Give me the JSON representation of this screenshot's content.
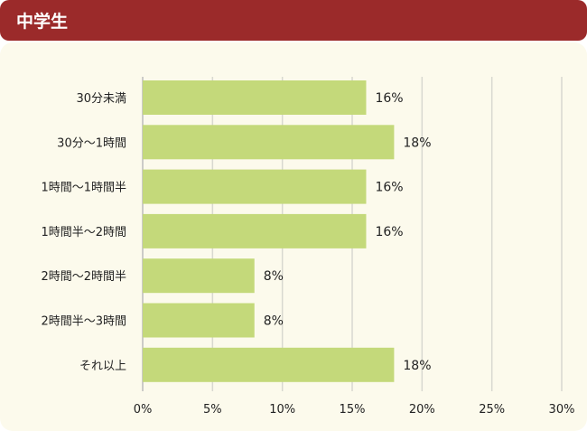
{
  "header": {
    "title": "中学生"
  },
  "colors": {
    "header": "#9b2a2a",
    "bar": "#c4d97a",
    "panel": "#fcfaec"
  },
  "chart_data": {
    "type": "bar",
    "orientation": "horizontal",
    "categories": [
      "30分未満",
      "30分～1時間",
      "1時間～1時間半",
      "1時間半～2時間",
      "2時間～2時間半",
      "2時間半～3時間",
      "それ以上"
    ],
    "values": [
      16,
      18,
      16,
      16,
      8,
      8,
      18
    ],
    "data_labels": [
      "16%",
      "18%",
      "16%",
      "16%",
      "8%",
      "8%",
      "18%"
    ],
    "xlim": [
      0,
      30
    ],
    "xticks": [
      "0%",
      "5%",
      "10%",
      "15%",
      "20%",
      "25%",
      "30%"
    ],
    "grid": true
  }
}
